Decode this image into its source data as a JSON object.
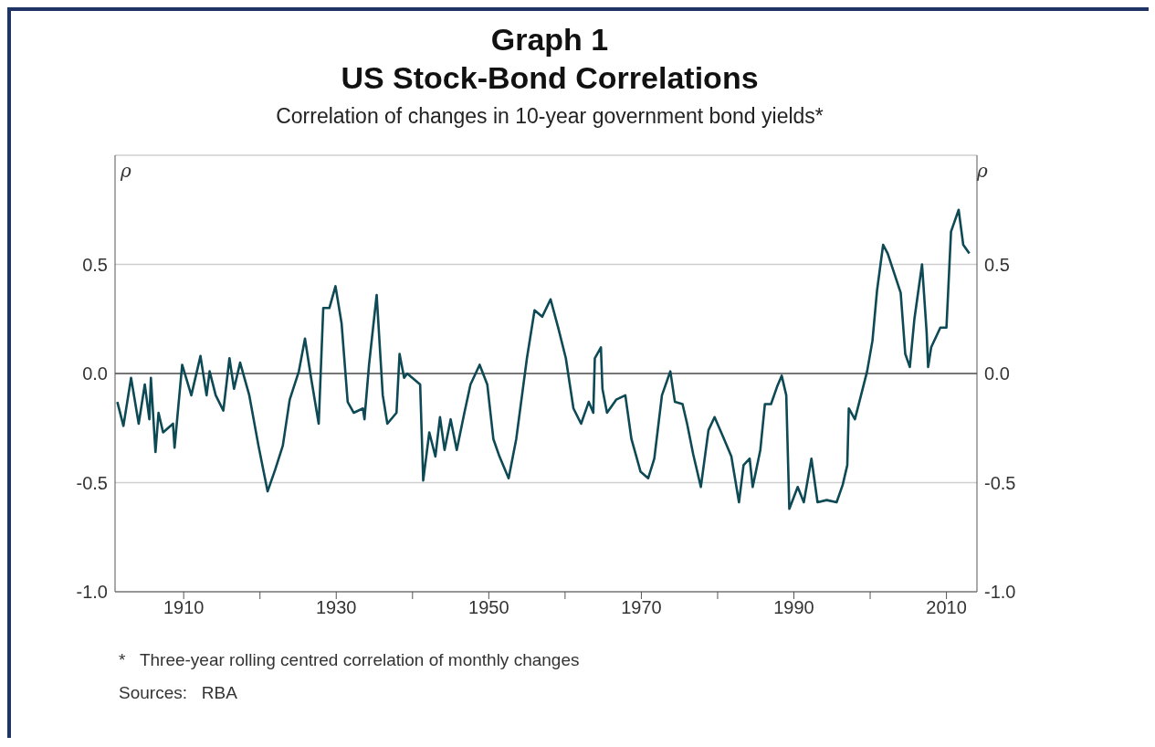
{
  "chart_data": {
    "type": "line",
    "title": "US Stock-Bond Correlations",
    "subtitle": "Correlation of changes in 10-year government bond yields*",
    "ylabel": "ρ",
    "y2label": "ρ",
    "annotations": [
      "Graph 1",
      "*   Three-year rolling centred correlation of monthly changes",
      "Sources:   RBA"
    ],
    "x": [
      1901.3,
      1902.1,
      1903.1,
      1904.1,
      1904.9,
      1905.5,
      1905.7,
      1906.3,
      1906.7,
      1907.3,
      1908.6,
      1908.8,
      1909.8,
      1911,
      1912.2,
      1913,
      1913.4,
      1914.2,
      1915.2,
      1916,
      1916.6,
      1917.4,
      1918.6,
      1919.8,
      1921,
      1922,
      1923,
      1923.9,
      1925.1,
      1925.9,
      1926.7,
      1927.7,
      1928.3,
      1929.1,
      1929.9,
      1930.7,
      1931.5,
      1932.3,
      1933.5,
      1933.7,
      1934.3,
      1935.3,
      1936.1,
      1936.7,
      1937.9,
      1938.3,
      1938.9,
      1939.3,
      1941,
      1941.4,
      1942.2,
      1943,
      1943.6,
      1944.2,
      1945,
      1945.8,
      1946.8,
      1947.6,
      1948.8,
      1949.8,
      1950.6,
      1951.4,
      1952.6,
      1953.6,
      1955,
      1956,
      1957,
      1958.1,
      1959.1,
      1960.1,
      1961.1,
      1962.1,
      1963.1,
      1963.7,
      1963.9,
      1964.7,
      1964.9,
      1965.5,
      1966.7,
      1967.9,
      1968.7,
      1969.9,
      1970.9,
      1971.7,
      1972.7,
      1973.8,
      1974.4,
      1975.4,
      1976,
      1976.8,
      1977.8,
      1978.8,
      1979.6,
      1980.6,
      1981.8,
      1982.8,
      1983.4,
      1984.2,
      1984.6,
      1985.6,
      1986.2,
      1987,
      1987.8,
      1988.4,
      1989,
      1989.4,
      1990.5,
      1991.3,
      1992.3,
      1993.1,
      1994.3,
      1995.6,
      1996.4,
      1997,
      1997.2,
      1998,
      1998.8,
      1999.6,
      2000.3,
      2000.9,
      2001.7,
      2002.3,
      2004,
      2004.6,
      2005.2,
      2005.8,
      2006.8,
      2007.4,
      2007.6,
      2008,
      2009.2,
      2010,
      2010.6,
      2011.6,
      2012.2,
      2013
    ],
    "series": [
      {
        "color": "#0d4a55",
        "values": [
          -0.13,
          -0.24,
          -0.02,
          -0.23,
          -0.05,
          -0.21,
          -0.02,
          -0.36,
          -0.18,
          -0.27,
          -0.23,
          -0.34,
          0.04,
          -0.1,
          0.08,
          -0.1,
          0.01,
          -0.1,
          -0.17,
          0.07,
          -0.07,
          0.05,
          -0.1,
          -0.33,
          -0.54,
          -0.44,
          -0.33,
          -0.12,
          0.01,
          0.16,
          -0.02,
          -0.23,
          0.3,
          0.3,
          0.4,
          0.23,
          -0.13,
          -0.18,
          -0.16,
          -0.21,
          0.04,
          0.36,
          -0.1,
          -0.23,
          -0.18,
          0.09,
          -0.02,
          0,
          -0.05,
          -0.49,
          -0.27,
          -0.38,
          -0.2,
          -0.35,
          -0.21,
          -0.35,
          -0.18,
          -0.05,
          0.04,
          -0.05,
          -0.3,
          -0.38,
          -0.48,
          -0.3,
          0.07,
          0.29,
          0.26,
          0.34,
          0.21,
          0.07,
          -0.16,
          -0.23,
          -0.13,
          -0.18,
          0.07,
          0.12,
          -0.07,
          -0.18,
          -0.12,
          -0.1,
          -0.3,
          -0.45,
          -0.48,
          -0.39,
          -0.1,
          0.01,
          -0.13,
          -0.14,
          -0.23,
          -0.37,
          -0.52,
          -0.26,
          -0.2,
          -0.28,
          -0.38,
          -0.59,
          -0.42,
          -0.39,
          -0.52,
          -0.35,
          -0.14,
          -0.14,
          -0.06,
          -0.01,
          -0.1,
          -0.62,
          -0.52,
          -0.59,
          -0.39,
          -0.59,
          -0.58,
          -0.59,
          -0.51,
          -0.42,
          -0.16,
          -0.21,
          -0.1,
          0.01,
          0.15,
          0.38,
          0.59,
          0.55,
          0.37,
          0.09,
          0.03,
          0.25,
          0.5,
          0.19,
          0.03,
          0.12,
          0.21,
          0.21,
          0.65,
          0.75,
          0.59,
          0.55
        ]
      }
    ],
    "xlim": [
      1901,
      2014
    ],
    "xticks": [
      1910,
      {
        "value": 1920,
        "label": null
      },
      1930,
      {
        "value": 1940,
        "label": null
      },
      1950,
      {
        "value": 1960,
        "label": null
      },
      1970,
      {
        "value": 1980,
        "label": null
      },
      1990,
      {
        "value": 2000,
        "label": null
      },
      2010
    ],
    "ylim": [
      -1,
      1
    ],
    "yticks": [
      {
        "value": -1,
        "label": "-1.0"
      },
      {
        "value": -0.5,
        "label": "-0.5"
      },
      {
        "value": 0,
        "label": "0.0"
      },
      {
        "value": 0.5,
        "label": "0.5"
      }
    ],
    "y2lim": [
      -1,
      1
    ],
    "y2ticks": [
      {
        "value": -1,
        "label": "-1.0"
      },
      {
        "value": -0.5,
        "label": "-0.5"
      },
      {
        "value": 0,
        "label": "0.0"
      },
      {
        "value": 0.5,
        "label": "0.5"
      }
    ],
    "ref_lines": [
      {
        "axis": "y",
        "value": 0,
        "color": "#555555"
      }
    ],
    "grid": "y"
  }
}
